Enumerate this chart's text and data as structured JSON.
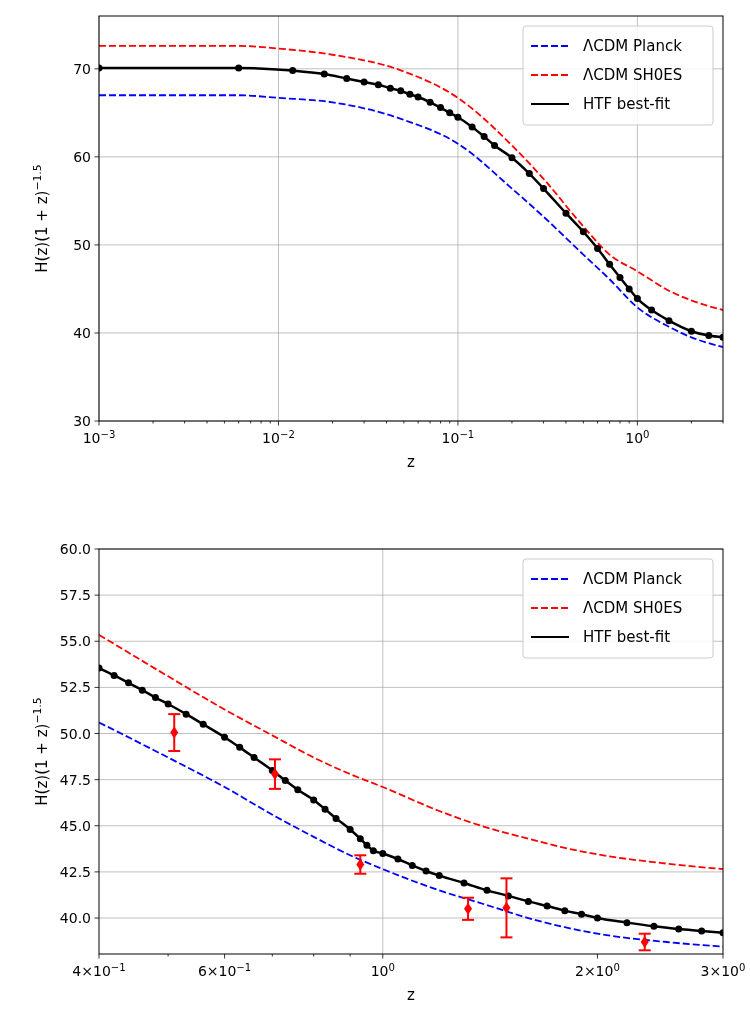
{
  "chart_data": [
    {
      "type": "line",
      "xlabel": "z",
      "ylabel": "H(z)(1 + z)$^{−1.5}$",
      "log": "x",
      "grid": true,
      "legend": "top right",
      "xlim": [
        0.001,
        3
      ],
      "ylim": [
        30,
        76
      ],
      "xticks": [
        {
          "value": 0.001,
          "label": "10$^{−3}$"
        },
        {
          "value": 0.002,
          "label": null
        },
        {
          "value": 0.003,
          "label": null
        },
        {
          "value": 0.004,
          "label": null
        },
        {
          "value": 0.005,
          "label": null
        },
        {
          "value": 0.006,
          "label": null
        },
        {
          "value": 0.007,
          "label": null
        },
        {
          "value": 0.008,
          "label": null
        },
        {
          "value": 0.009,
          "label": null
        },
        {
          "value": 0.01,
          "label": "10$^{−2}$"
        },
        {
          "value": 0.02,
          "label": null
        },
        {
          "value": 0.03,
          "label": null
        },
        {
          "value": 0.04,
          "label": null
        },
        {
          "value": 0.05,
          "label": null
        },
        {
          "value": 0.06,
          "label": null
        },
        {
          "value": 0.07,
          "label": null
        },
        {
          "value": 0.08,
          "label": null
        },
        {
          "value": 0.09,
          "label": null
        },
        {
          "value": 0.1,
          "label": "10$^{−1}$"
        },
        {
          "value": 0.2,
          "label": null
        },
        {
          "value": 0.3,
          "label": null
        },
        {
          "value": 0.4,
          "label": null
        },
        {
          "value": 0.5,
          "label": null
        },
        {
          "value": 0.6,
          "label": null
        },
        {
          "value": 0.7,
          "label": null
        },
        {
          "value": 0.8,
          "label": null
        },
        {
          "value": 0.9,
          "label": null
        },
        {
          "value": 1,
          "label": "10$^{0}$"
        },
        {
          "value": 2,
          "label": null
        },
        {
          "value": 3,
          "label": null
        }
      ],
      "yticks": [
        30,
        40,
        50,
        60,
        70
      ],
      "series": [
        {
          "name": "ΛCDM Planck",
          "color": "#0000ff",
          "line_style": "dashed",
          "marker": "none",
          "x": [
            0.001,
            0.006,
            0.01,
            0.02,
            0.05,
            0.1,
            0.2,
            0.3,
            0.5,
            0.7,
            1,
            1.5,
            2,
            3
          ],
          "values": [
            67.0,
            67.0,
            66.7,
            66.2,
            64.2,
            61.5,
            56.4,
            53.2,
            48.9,
            46.1,
            42.9,
            40.7,
            39.5,
            38.4
          ]
        },
        {
          "name": "ΛCDM SH0ES",
          "color": "#ff0000",
          "line_style": "dashed",
          "marker": "none",
          "x": [
            0.001,
            0.006,
            0.01,
            0.02,
            0.05,
            0.1,
            0.2,
            0.3,
            0.5,
            0.7,
            1,
            1.5,
            2,
            3
          ],
          "values": [
            72.6,
            72.6,
            72.3,
            71.6,
            69.7,
            66.7,
            61.3,
            57.5,
            52.1,
            48.9,
            47.0,
            44.8,
            43.7,
            42.6
          ]
        },
        {
          "name": "HTF best-fit",
          "color": "#000000",
          "line_style": "solid",
          "marker": "circle",
          "x": [
            0.001,
            0.006,
            0.012,
            0.018,
            0.024,
            0.03,
            0.036,
            0.042,
            0.048,
            0.054,
            0.06,
            0.07,
            0.08,
            0.09,
            0.1,
            0.12,
            0.14,
            0.16,
            0.2,
            0.25,
            0.3,
            0.4,
            0.5,
            0.6,
            0.7,
            0.8,
            0.9,
            1,
            1.2,
            1.5,
            2,
            2.5,
            3
          ],
          "values": [
            70.1,
            70.1,
            69.8,
            69.4,
            68.9,
            68.5,
            68.2,
            67.8,
            67.5,
            67.1,
            66.8,
            66.2,
            65.6,
            65.0,
            64.5,
            63.4,
            62.3,
            61.3,
            59.9,
            58.1,
            56.4,
            53.6,
            51.5,
            49.6,
            47.8,
            46.3,
            45.0,
            43.9,
            42.6,
            41.4,
            40.2,
            39.7,
            39.5
          ]
        }
      ]
    },
    {
      "type": "line",
      "xlabel": "z",
      "ylabel": "H(z)(1 + z)$^{−1.5}$",
      "log": "x",
      "grid": true,
      "legend": "top right",
      "xlim": [
        0.4,
        3
      ],
      "ylim": [
        38.05,
        60
      ],
      "xticks": [
        {
          "value": 0.4,
          "label": "4×10$^{−1}$"
        },
        {
          "value": 0.5,
          "label": null
        },
        {
          "value": 0.6,
          "label": "6×10$^{−1}$"
        },
        {
          "value": 0.7,
          "label": null
        },
        {
          "value": 0.8,
          "label": null
        },
        {
          "value": 0.9,
          "label": null
        },
        {
          "value": 1,
          "label": "10$^{0}$"
        },
        {
          "value": 2,
          "label": "2×10$^{0}$"
        },
        {
          "value": 3,
          "label": "3×10$^{0}$"
        }
      ],
      "yticks": [
        {
          "value": 40,
          "label": "40.0"
        },
        {
          "value": 42.5,
          "label": "42.5"
        },
        {
          "value": 45,
          "label": "45.0"
        },
        {
          "value": 47.5,
          "label": "47.5"
        },
        {
          "value": 50,
          "label": "50.0"
        },
        {
          "value": 52.5,
          "label": "52.5"
        },
        {
          "value": 55,
          "label": "55.0"
        },
        {
          "value": 57.5,
          "label": "57.5"
        },
        {
          "value": 60,
          "label": "60.0"
        }
      ],
      "series": [
        {
          "name": "ΛCDM Planck",
          "color": "#0000ff",
          "line_style": "dashed",
          "marker": "none",
          "x": [
            0.4,
            0.5,
            0.6,
            0.7,
            0.8,
            0.9,
            1,
            1.2,
            1.4,
            1.6,
            1.8,
            2,
            2.5,
            3
          ],
          "values": [
            50.6,
            48.7,
            47.1,
            45.6,
            44.4,
            43.4,
            42.65,
            41.5,
            40.7,
            40.0,
            39.5,
            39.15,
            38.7,
            38.45
          ]
        },
        {
          "name": "ΛCDM SH0ES",
          "color": "#ff0000",
          "line_style": "dashed",
          "marker": "none",
          "x": [
            0.4,
            0.5,
            0.6,
            0.7,
            0.8,
            0.9,
            1,
            1.2,
            1.4,
            1.6,
            1.8,
            2,
            2.5,
            3
          ],
          "values": [
            55.35,
            53.1,
            51.3,
            49.9,
            48.7,
            47.8,
            47.1,
            45.8,
            44.9,
            44.3,
            43.8,
            43.45,
            42.95,
            42.65
          ]
        },
        {
          "name": "HTF best-fit",
          "color": "#000000",
          "line_style": "solid",
          "marker": "circle",
          "x": [
            0.4,
            0.42,
            0.44,
            0.46,
            0.48,
            0.5,
            0.53,
            0.56,
            0.6,
            0.63,
            0.66,
            0.7,
            0.73,
            0.76,
            0.8,
            0.83,
            0.86,
            0.9,
            0.93,
            0.95,
            0.97,
            1,
            1.05,
            1.1,
            1.15,
            1.2,
            1.3,
            1.4,
            1.5,
            1.6,
            1.7,
            1.8,
            1.9,
            2,
            2.2,
            2.4,
            2.6,
            2.8,
            3
          ],
          "values": [
            53.55,
            53.15,
            52.75,
            52.35,
            51.95,
            51.6,
            51.05,
            50.5,
            49.8,
            49.25,
            48.7,
            48.0,
            47.45,
            46.95,
            46.4,
            45.9,
            45.4,
            44.8,
            44.3,
            43.95,
            43.65,
            43.5,
            43.2,
            42.85,
            42.55,
            42.3,
            41.9,
            41.5,
            41.2,
            40.9,
            40.65,
            40.4,
            40.2,
            40.0,
            39.75,
            39.55,
            39.4,
            39.3,
            39.2
          ]
        },
        {
          "type": "scatter",
          "color": "#ff0000",
          "marker": "diamond",
          "x": [
            0.51,
            0.706,
            0.93,
            1.317,
            1.491,
            2.33
          ],
          "values": [
            50.05,
            47.8,
            42.9,
            40.5,
            40.55,
            38.7
          ],
          "errors": [
            1.0,
            0.8,
            0.5,
            0.6,
            1.6,
            0.45
          ]
        }
      ]
    }
  ]
}
